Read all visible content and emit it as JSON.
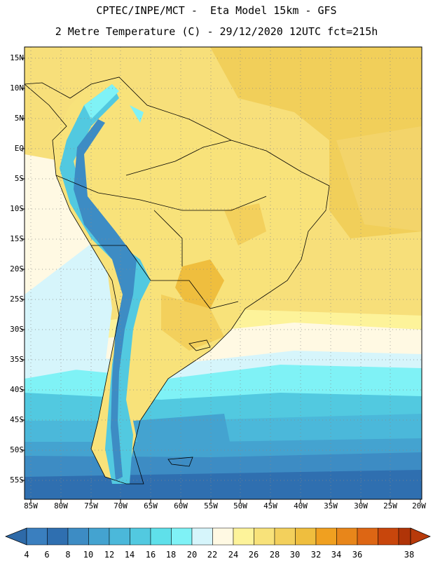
{
  "title": {
    "line1": "CPTEC/INPE/MCT -  Eta Model 15km - GFS",
    "line2": "2 Metre Temperature (C) - 29/12/2020 12UTC fct=215h"
  },
  "map": {
    "region": "South America",
    "lat_range": [
      -58,
      16.5
    ],
    "lon_range": [
      -86,
      -20
    ],
    "lat_ticks": [
      "15N",
      "10N",
      "5N",
      "EQ",
      "5S",
      "10S",
      "15S",
      "20S",
      "25S",
      "30S",
      "35S",
      "40S",
      "45S",
      "50S",
      "55S"
    ],
    "lon_ticks": [
      "85W",
      "80W",
      "75W",
      "70W",
      "65W",
      "60W",
      "55W",
      "50W",
      "45W",
      "40W",
      "35W",
      "30W",
      "25W",
      "20W"
    ],
    "gridlines": "dotted"
  },
  "colorbar": {
    "labels": [
      "4",
      "6",
      "8",
      "10",
      "12",
      "14",
      "16",
      "18",
      "20",
      "22",
      "24",
      "26",
      "28",
      "30",
      "32",
      "34",
      "36",
      "38"
    ],
    "colors": [
      "#3a7fbf",
      "#2f6fb0",
      "#3d8cc4",
      "#44a3d0",
      "#4bb8da",
      "#52c9e0",
      "#5fe0ea",
      "#7ff2f6",
      "#d6f5fb",
      "#fff9e3",
      "#fdf39a",
      "#f8e27a",
      "#f3d05c",
      "#efbe3e",
      "#f0a020",
      "#e8861a",
      "#dd6614",
      "#c8460c",
      "#b03408"
    ],
    "low_end_color": "#2e6aa8",
    "high_end_color": "#b83a0a"
  }
}
